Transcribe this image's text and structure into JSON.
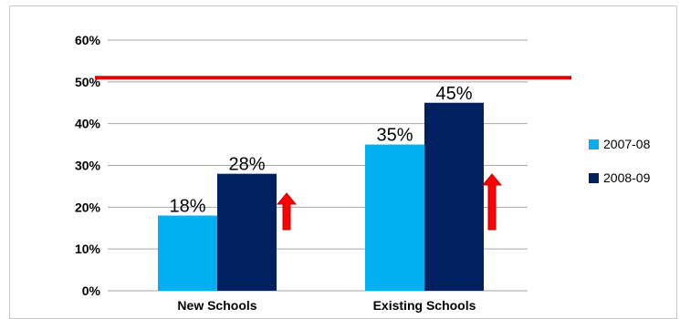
{
  "chart_data": {
    "type": "bar",
    "title": "",
    "xlabel": "",
    "ylabel": "",
    "categories": [
      "New Schools",
      "Existing Schools"
    ],
    "series": [
      {
        "name": "2007-08",
        "values": [
          18,
          35
        ],
        "color": "#00b0f0"
      },
      {
        "name": "2008-09",
        "values": [
          28,
          45
        ],
        "color": "#002060"
      }
    ],
    "data_labels": [
      [
        "18%",
        "35%"
      ],
      [
        "28%",
        "45%"
      ]
    ],
    "ylim": [
      0,
      60
    ],
    "yticks": [
      0,
      10,
      20,
      30,
      40,
      50,
      60
    ],
    "ytick_labels": [
      "0%",
      "10%",
      "20%",
      "30%",
      "40%",
      "50%",
      "60%"
    ],
    "grid": true,
    "legend": "right",
    "reference_line": {
      "value": 51,
      "color": "#e00000"
    },
    "arrow_color": "#ff0000",
    "gridline_color": "#a6a6a6"
  }
}
